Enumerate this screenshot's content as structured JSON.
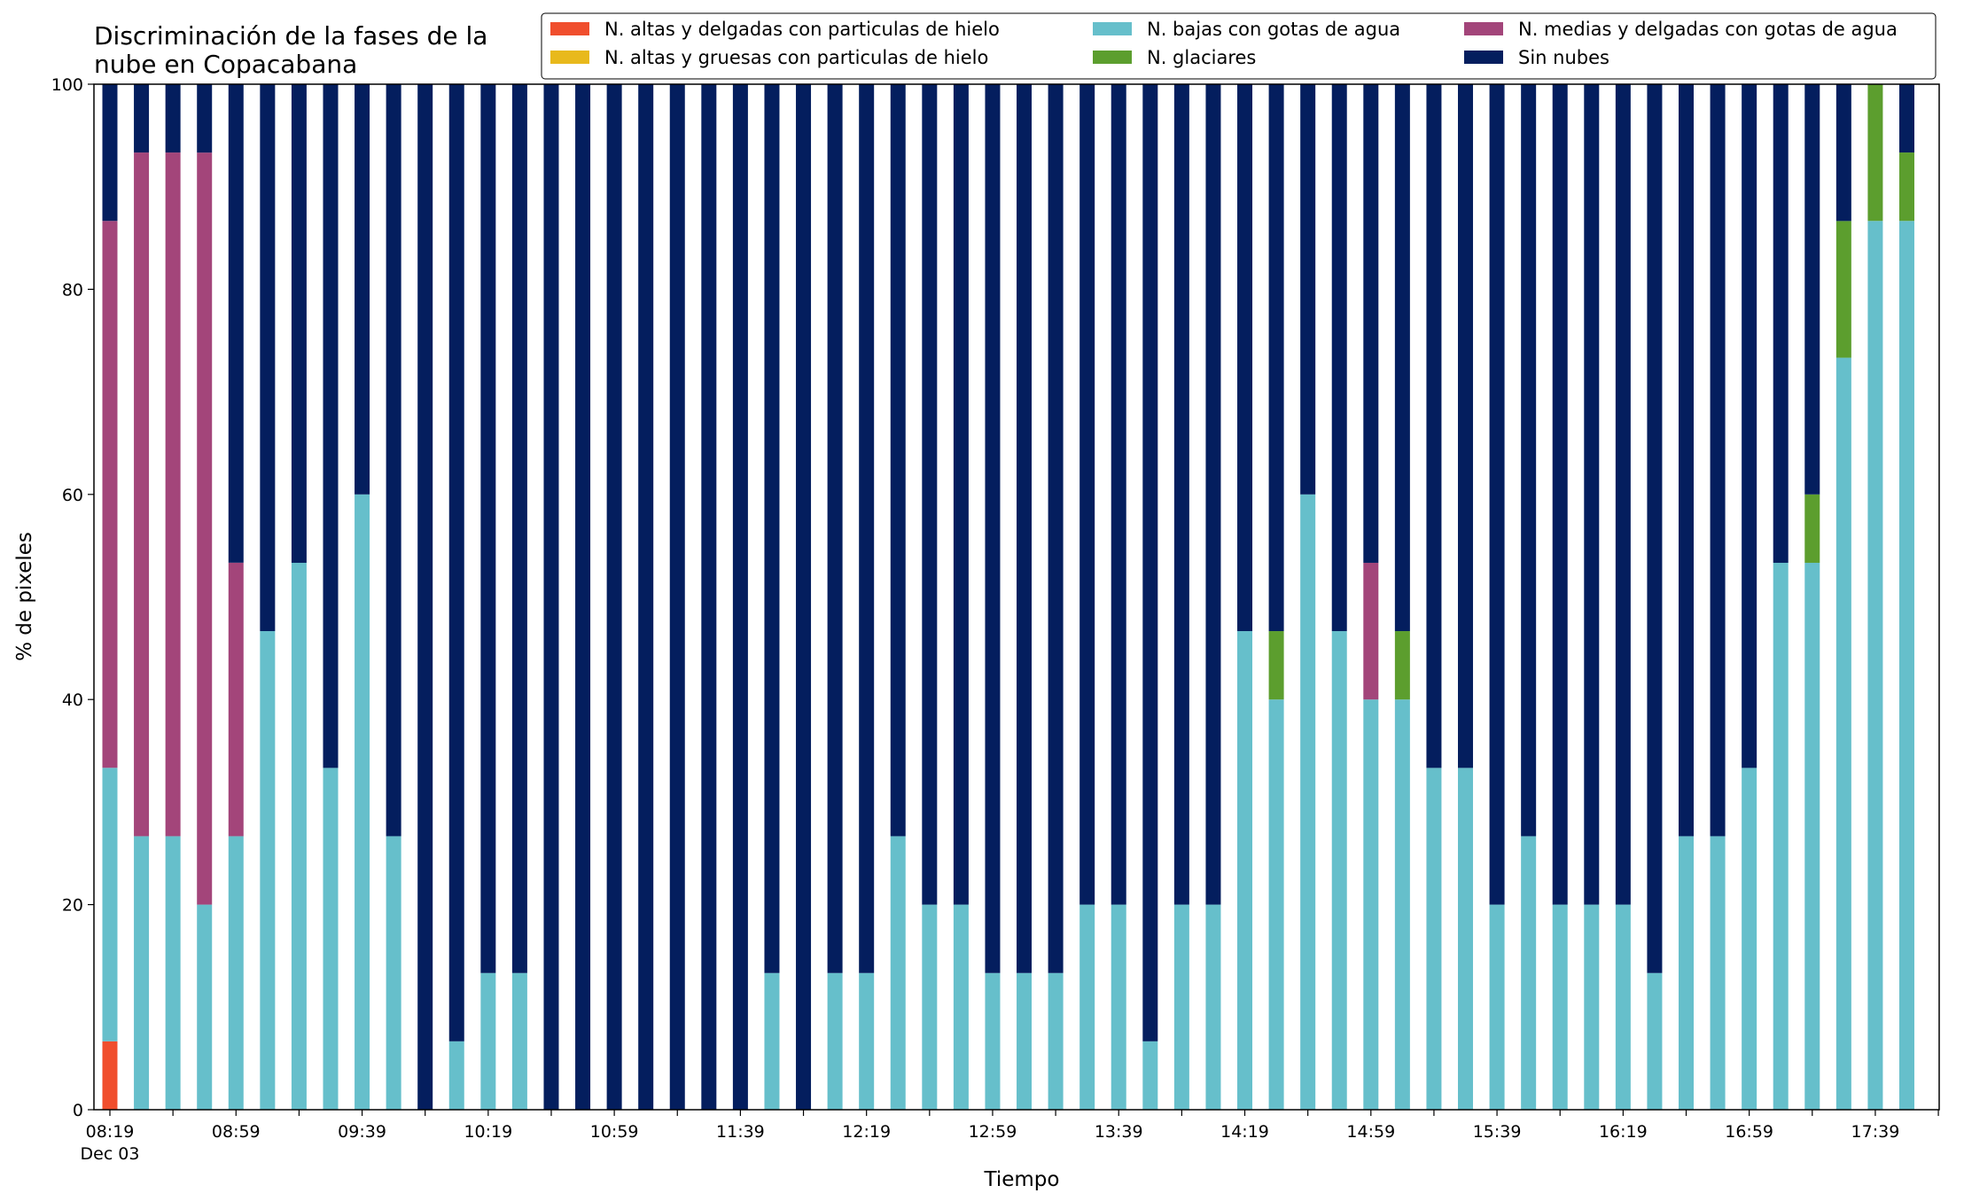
{
  "chart_data": {
    "type": "bar",
    "stacked": true,
    "title": [
      "Discriminación de la fases de la",
      "nube en Copacabana"
    ],
    "xlabel": "Tiempo",
    "ylabel": "% de pixeles",
    "ylim": [
      0,
      100
    ],
    "yticks": [
      0,
      20,
      40,
      60,
      80,
      100
    ],
    "grid": false,
    "legend_position": "top-right",
    "x_tick_labels": [
      "08:19",
      "08:59",
      "09:39",
      "10:19",
      "10:59",
      "11:39",
      "12:19",
      "12:59",
      "13:39",
      "14:19",
      "14:59",
      "15:39",
      "16:19",
      "16:59",
      "17:39"
    ],
    "x_tick_sublabel": "Dec 03",
    "minor_tick_interval_minutes": 20,
    "categories": [
      "08:19",
      "08:29",
      "08:39",
      "08:49",
      "08:59",
      "09:09",
      "09:19",
      "09:29",
      "09:39",
      "09:49",
      "09:59",
      "10:09",
      "10:19",
      "10:29",
      "10:39",
      "10:49",
      "10:59",
      "11:09",
      "11:19",
      "11:29",
      "11:39",
      "11:49",
      "11:59",
      "12:09",
      "12:19",
      "12:29",
      "12:39",
      "12:49",
      "12:59",
      "13:09",
      "13:19",
      "13:29",
      "13:39",
      "13:49",
      "13:59",
      "14:09",
      "14:19",
      "14:29",
      "14:39",
      "14:49",
      "14:59",
      "15:09",
      "15:19",
      "15:29",
      "15:39",
      "15:49",
      "15:59",
      "16:09",
      "16:19",
      "16:29",
      "16:39",
      "16:49",
      "16:59",
      "17:09",
      "17:19",
      "17:29",
      "17:39",
      "17:49"
    ],
    "series": [
      {
        "name": "N. altas y delgadas con particulas de hielo",
        "color": "#f04e2d",
        "values": [
          6.67,
          0,
          0,
          0,
          0,
          0,
          0,
          0,
          0,
          0,
          0,
          0,
          0,
          0,
          0,
          0,
          0,
          0,
          0,
          0,
          0,
          0,
          0,
          0,
          0,
          0,
          0,
          0,
          0,
          0,
          0,
          0,
          0,
          0,
          0,
          0,
          0,
          0,
          0,
          0,
          0,
          0,
          0,
          0,
          0,
          0,
          0,
          0,
          0,
          0,
          0,
          0,
          0,
          0,
          0,
          0,
          0,
          0
        ]
      },
      {
        "name": "N. altas y gruesas con particulas de hielo",
        "color": "#e8b91c",
        "values": [
          0,
          0,
          0,
          0,
          0,
          0,
          0,
          0,
          0,
          0,
          0,
          0,
          0,
          0,
          0,
          0,
          0,
          0,
          0,
          0,
          0,
          0,
          0,
          0,
          0,
          0,
          0,
          0,
          0,
          0,
          0,
          0,
          0,
          0,
          0,
          0,
          0,
          0,
          0,
          0,
          0,
          0,
          0,
          0,
          0,
          0,
          0,
          0,
          0,
          0,
          0,
          0,
          0,
          0,
          0,
          0,
          0,
          0
        ]
      },
      {
        "name": "N. bajas con gotas de agua",
        "color": "#66bfcb",
        "values": [
          26.67,
          26.67,
          26.67,
          20,
          26.67,
          46.67,
          53.33,
          33.33,
          60,
          26.67,
          0,
          6.67,
          13.33,
          13.33,
          0,
          0,
          0,
          0,
          0,
          0,
          0,
          13.33,
          0,
          13.33,
          13.33,
          26.67,
          20,
          20,
          13.33,
          13.33,
          13.33,
          20,
          20,
          6.67,
          20,
          20,
          46.67,
          40,
          60,
          46.67,
          40,
          40,
          33.33,
          33.33,
          20,
          26.67,
          20,
          20,
          20,
          13.33,
          26.67,
          26.67,
          33.33,
          53.33,
          53.33,
          73.33,
          86.67,
          86.67
        ]
      },
      {
        "name": "N. glaciares",
        "color": "#5c9e2e",
        "values": [
          0,
          0,
          0,
          0,
          0,
          0,
          0,
          0,
          0,
          0,
          0,
          0,
          0,
          0,
          0,
          0,
          0,
          0,
          0,
          0,
          0,
          0,
          0,
          0,
          0,
          0,
          0,
          0,
          0,
          0,
          0,
          0,
          0,
          0,
          0,
          0,
          0,
          6.67,
          0,
          0,
          0,
          6.67,
          0,
          0,
          0,
          0,
          0,
          0,
          0,
          0,
          0,
          0,
          0,
          0,
          6.67,
          13.33,
          13.33,
          6.67
        ]
      },
      {
        "name": "N. medias y delgadas con gotas de agua",
        "color": "#a3457a",
        "values": [
          53.33,
          66.67,
          66.67,
          73.33,
          26.67,
          0,
          0,
          0,
          0,
          0,
          0,
          0,
          0,
          0,
          0,
          0,
          0,
          0,
          0,
          0,
          0,
          0,
          0,
          0,
          0,
          0,
          0,
          0,
          0,
          0,
          0,
          0,
          0,
          0,
          0,
          0,
          0,
          0,
          0,
          0,
          13.33,
          0,
          0,
          0,
          0,
          0,
          0,
          0,
          0,
          0,
          0,
          0,
          0,
          0,
          0,
          0,
          0,
          0
        ]
      },
      {
        "name": "Sin nubes",
        "color": "#041e5e",
        "values": [
          13.33,
          6.67,
          6.67,
          6.67,
          46.67,
          53.33,
          46.67,
          66.67,
          40,
          73.33,
          100,
          93.33,
          86.67,
          86.67,
          100,
          100,
          100,
          100,
          100,
          100,
          100,
          86.67,
          100,
          86.67,
          86.67,
          73.33,
          80,
          80,
          86.67,
          86.67,
          86.67,
          80,
          80,
          93.33,
          80,
          80,
          53.33,
          53.33,
          40,
          53.33,
          46.67,
          53.33,
          66.67,
          66.67,
          80,
          73.33,
          80,
          80,
          80,
          86.67,
          73.33,
          73.33,
          66.67,
          46.67,
          40,
          13.33,
          0,
          6.67
        ]
      }
    ],
    "legend_order": [
      0,
      1,
      2,
      3,
      4,
      5
    ]
  }
}
